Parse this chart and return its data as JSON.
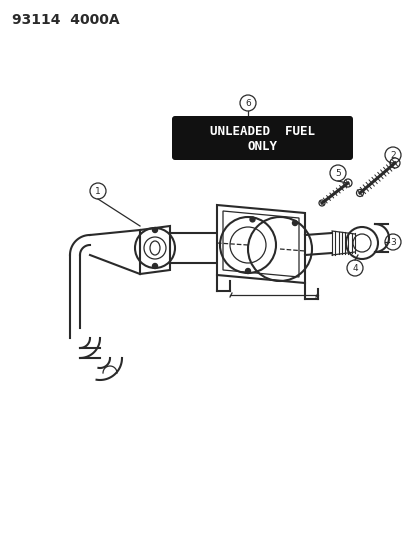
{
  "title_text": "93114  4000A",
  "background_color": "#ffffff",
  "line_color": "#2a2a2a",
  "label_bg": "#111111",
  "label_text_color": "#ffffff",
  "label_line1": "UNLEADED  FUEL",
  "label_line2": "ONLY",
  "figsize": [
    4.14,
    5.33
  ],
  "dpi": 100
}
